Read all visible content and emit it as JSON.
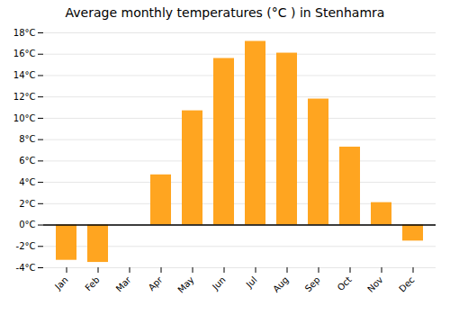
{
  "chart_data": {
    "type": "bar",
    "title": "Average monthly temperatures (°C ) in Stenhamra",
    "categories": [
      "Jan",
      "Feb",
      "Mar",
      "Apr",
      "May",
      "Jun",
      "Jul",
      "Aug",
      "Sep",
      "Oct",
      "Nov",
      "Dec"
    ],
    "values": [
      -3.3,
      -3.5,
      0.0,
      4.7,
      10.7,
      15.6,
      17.2,
      16.1,
      11.8,
      7.3,
      2.1,
      -1.5
    ],
    "color": "#FFA520",
    "ylim": [
      -4,
      18
    ],
    "yticks": [
      {
        "value": -4,
        "label": "-4°C"
      },
      {
        "value": -2,
        "label": "-2°C"
      },
      {
        "value": 0,
        "label": "0°C"
      },
      {
        "value": 2,
        "label": "2°C"
      },
      {
        "value": 4,
        "label": "4°C"
      },
      {
        "value": 6,
        "label": "6°C"
      },
      {
        "value": 8,
        "label": "8°C"
      },
      {
        "value": 10,
        "label": "10°C"
      },
      {
        "value": 12,
        "label": "12°C"
      },
      {
        "value": 14,
        "label": "14°C"
      },
      {
        "value": 16,
        "label": "16°C"
      },
      {
        "value": 18,
        "label": "18°C"
      }
    ],
    "grid": true
  }
}
